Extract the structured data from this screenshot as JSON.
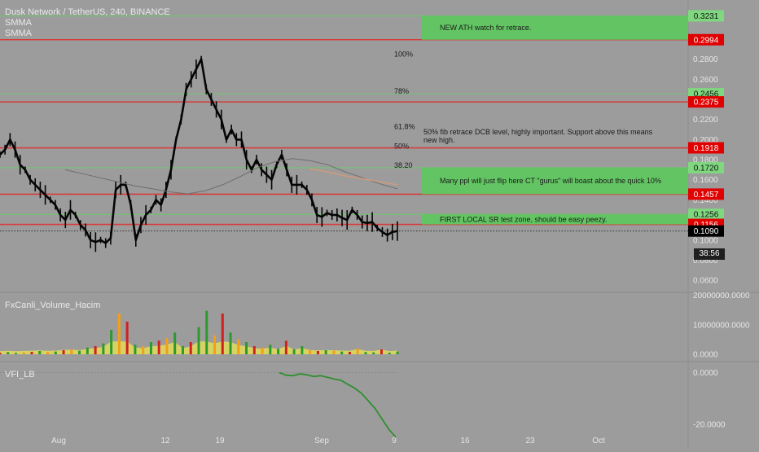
{
  "header": {
    "title": "Dusk Network / TetherUS, 240, BINANCE",
    "indicators": [
      "SMMA",
      "SMMA"
    ]
  },
  "countdown": "38:56",
  "panes": {
    "volume": {
      "title": "FxCanli_Volume_Hacim"
    },
    "vfi": {
      "title": "VFI_LB"
    }
  },
  "colors": {
    "background": "#9c9c9c",
    "candle": "#050505",
    "resistance_line": "#d73c3c",
    "support_line": "#6fc56f",
    "annotation_box": "#63c463",
    "vfi_line": "#2f8f2f",
    "volume_up": "#2c9a2c",
    "volume_down": "#d02020",
    "volume_mid": "#f29f1a",
    "volume_band": "#e3dc5a"
  },
  "chart_data": [
    {
      "type": "line",
      "pane": "price",
      "title": "Dusk Network / TetherUS, 240, BINANCE",
      "x_ticks": [
        "Aug",
        "12",
        "19",
        "Sep",
        "9",
        "16",
        "23",
        "Oct"
      ],
      "y_ticks": [
        "0.2800",
        "0.2600",
        "0.2400",
        "0.2200",
        "0.2000",
        "0.1800",
        "0.1600",
        "0.1400",
        "0.1200",
        "0.1000",
        "0.0800",
        "0.0600"
      ],
      "ylim": [
        0.052,
        0.33
      ],
      "series": [
        {
          "values": [
            0.185,
            0.19,
            0.2,
            0.19,
            0.175,
            0.17,
            0.16,
            0.155,
            0.15,
            0.145,
            0.14,
            0.135,
            0.125,
            0.12,
            0.13,
            0.125,
            0.115,
            0.11,
            0.1,
            0.098,
            0.1,
            0.097,
            0.102,
            0.15,
            0.155,
            0.155,
            0.135,
            0.1,
            0.115,
            0.125,
            0.13,
            0.14,
            0.135,
            0.15,
            0.17,
            0.2,
            0.22,
            0.25,
            0.26,
            0.27,
            0.28,
            0.25,
            0.24,
            0.23,
            0.22,
            0.2,
            0.21,
            0.2,
            0.2,
            0.18,
            0.17,
            0.18,
            0.17,
            0.165,
            0.16,
            0.175,
            0.185,
            0.17,
            0.155,
            0.155,
            0.155,
            0.15,
            0.14,
            0.125,
            0.123,
            0.127,
            0.125,
            0.125,
            0.122,
            0.12,
            0.13,
            0.125,
            0.118,
            0.117,
            0.118,
            0.112,
            0.108,
            0.105,
            0.108,
            0.109
          ]
        },
        {
          "values": [
            0.17,
            0.166,
            0.162,
            0.158,
            0.154,
            0.151,
            0.148,
            0.146,
            0.149,
            0.155,
            0.163,
            0.172,
            0.178,
            0.181,
            0.179,
            0.175,
            0.168,
            0.162,
            0.156,
            0.151
          ]
        },
        {
          "values": [
            0.171,
            0.168,
            0.164,
            0.161,
            0.158,
            0.155
          ]
        }
      ],
      "levels": [
        {
          "price": "0.3231",
          "kind": "support"
        },
        {
          "price": "0.2994",
          "kind": "resistance"
        },
        {
          "price": "0.2456",
          "kind": "support"
        },
        {
          "price": "0.2375",
          "kind": "resistance"
        },
        {
          "price": "0.1918",
          "kind": "resistance"
        },
        {
          "price": "0.1720",
          "kind": "support"
        },
        {
          "price": "0.1457",
          "kind": "resistance"
        },
        {
          "price": "0.1256",
          "kind": "support"
        },
        {
          "price": "0.1156",
          "kind": "resistance"
        },
        {
          "price": "0.1090",
          "kind": "current"
        }
      ],
      "fib_labels": [
        {
          "text": "100%",
          "price": 0.285
        },
        {
          "text": "78%",
          "price": 0.248
        },
        {
          "text": "61.8%",
          "price": 0.213
        },
        {
          "text": "50%",
          "price": 0.1935
        },
        {
          "text": "38.20",
          "price": 0.1745
        }
      ],
      "annotations": [
        {
          "text": "NEW ATH watch for retrace.",
          "box": true,
          "price": 0.3231,
          "price_bottom": 0.2994
        },
        {
          "text": "50% fib retrace DCB level, highly important. Support above this means new high.",
          "box": false,
          "price": 0.205
        },
        {
          "text": "Many ppl will just flip here CT \"gurus\" will boast about the quick 10%",
          "box": true,
          "price": 0.172,
          "price_bottom": 0.1457
        },
        {
          "text": "FIRST LOCAL SR test zone, should be easy peezy.",
          "box": true,
          "price": 0.1256,
          "price_bottom": 0.1156
        }
      ]
    },
    {
      "type": "bar",
      "pane": "volume",
      "title": "FxCanli_Volume_Hacim",
      "y_ticks": [
        "20000000.0000",
        "10000000.0000",
        "0.0000"
      ],
      "ylim": [
        0,
        21000000
      ],
      "values": [
        600000,
        800000,
        500000,
        700000,
        900000,
        1200000,
        800000,
        1000000,
        1500000,
        1800000,
        1300000,
        2500000,
        3000000,
        4000000,
        9000000,
        15000000,
        12000000,
        3500000,
        3000000,
        4500000,
        5000000,
        6000000,
        8000000,
        3000000,
        4500000,
        10000000,
        16000000,
        7000000,
        15000000,
        8000000,
        5500000,
        4500000,
        3000000,
        2500000,
        3500000,
        2000000,
        5000000,
        1800000,
        3000000,
        1500000,
        1200000,
        1500000,
        1300000,
        1000000,
        900000,
        2200000,
        800000,
        700000,
        1800000,
        600000,
        1000000
      ]
    },
    {
      "type": "line",
      "pane": "vfi",
      "title": "VFI_LB",
      "y_ticks": [
        "0.0000",
        "-20.0000"
      ],
      "ylim": [
        -26,
        3
      ],
      "values": [
        0,
        -1,
        -1.2,
        -0.5,
        -0.8,
        -1.5,
        -1.2,
        -1.8,
        -2.5,
        -3,
        -4.5,
        -6,
        -8,
        -11,
        -14,
        -18,
        -22,
        -25
      ]
    }
  ]
}
